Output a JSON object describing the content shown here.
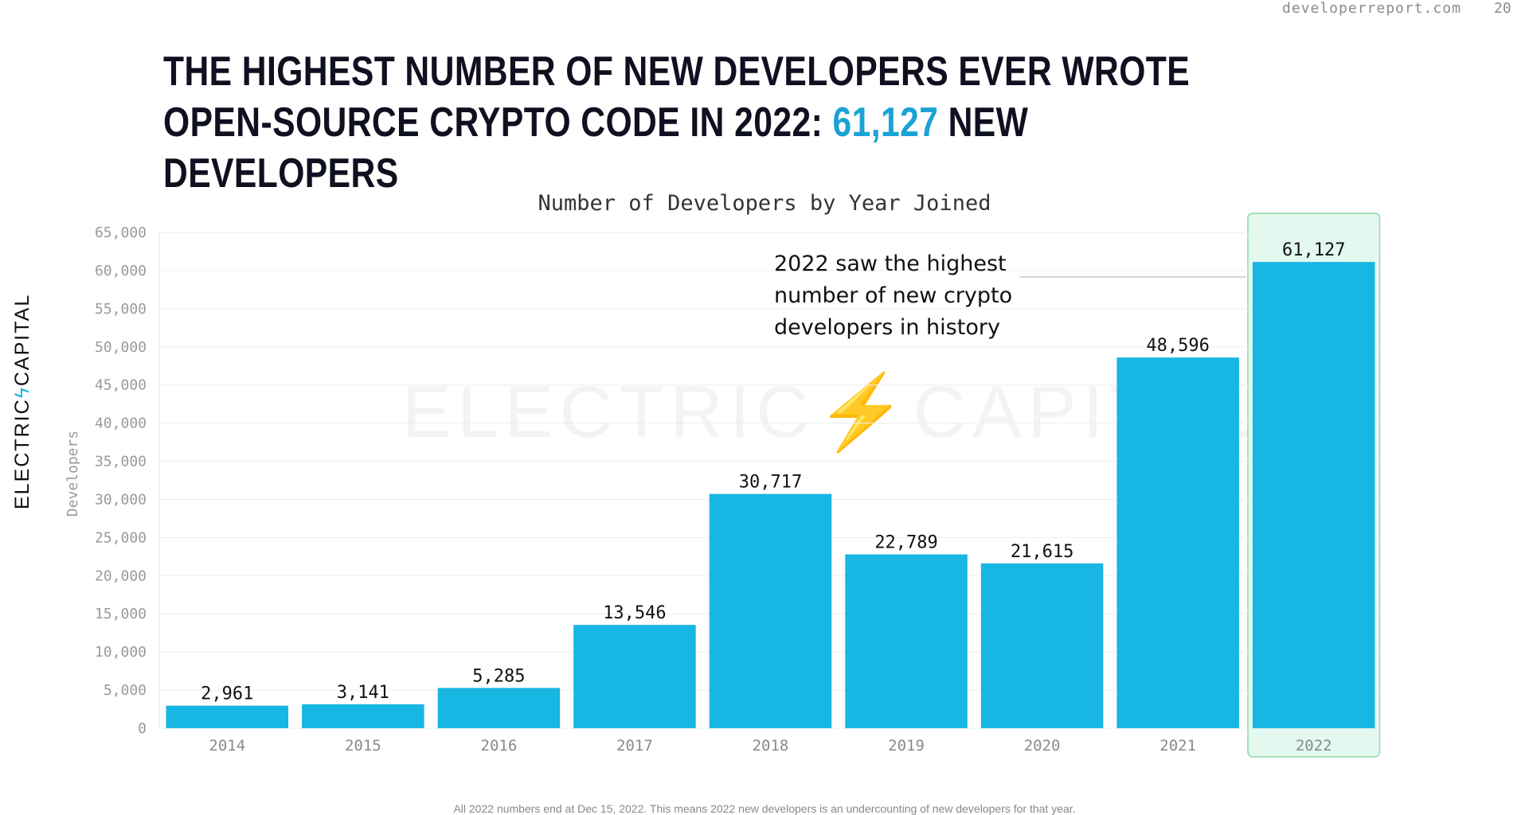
{
  "header": {
    "url": "developerreport.com",
    "page_number": "20"
  },
  "headline": {
    "before": "THE HIGHEST NUMBER OF NEW DEVELOPERS EVER WROTE OPEN-SOURCE CRYPTO CODE IN 2022: ",
    "highlight": "61,127",
    "after": " NEW DEVELOPERS"
  },
  "brand": {
    "part1": "ELECTRIC",
    "bolt": "ϟ",
    "part2": "CAPITAL"
  },
  "watermark": "ELECTRIC⚡CAPITAL",
  "annotation": "2022 saw the highest number of new crypto developers in history",
  "footnote": "All 2022 numbers end at Dec 15, 2022. This means 2022 new developers is an undercounting of new developers for that year.",
  "colors": {
    "bar": "#18b6e2",
    "highlight_fill": "#e3f8ee",
    "highlight_border": "#8fd9a8",
    "accent": "#1aa3d4"
  },
  "chart_data": {
    "type": "bar",
    "title": "Number of Developers by Year Joined",
    "xlabel": "",
    "ylabel": "Developers",
    "categories": [
      "2014",
      "2015",
      "2016",
      "2017",
      "2018",
      "2019",
      "2020",
      "2021",
      "2022"
    ],
    "values": [
      2961,
      3141,
      5285,
      13546,
      30717,
      22789,
      21615,
      48596,
      61127
    ],
    "data_labels": [
      "2,961",
      "3,141",
      "5,285",
      "13,546",
      "30,717",
      "22,789",
      "21,615",
      "48,596",
      "61,127"
    ],
    "ylim": [
      0,
      65000
    ],
    "yticks": [
      0,
      5000,
      10000,
      15000,
      20000,
      25000,
      30000,
      35000,
      40000,
      45000,
      50000,
      55000,
      60000,
      65000
    ],
    "ytick_labels": [
      "0",
      "5,000",
      "10,000",
      "15,000",
      "20,000",
      "25,000",
      "30,000",
      "35,000",
      "40,000",
      "45,000",
      "50,000",
      "55,000",
      "60,000",
      "65,000"
    ],
    "highlighted_category": "2022",
    "grid": true,
    "legend": "none"
  }
}
